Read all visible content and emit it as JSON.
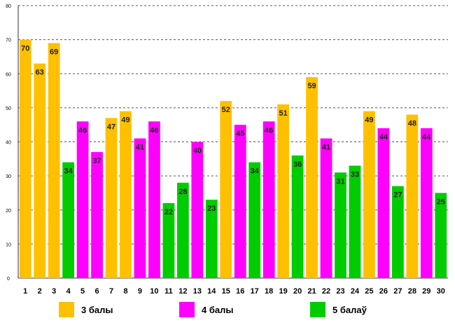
{
  "chart_data": {
    "type": "bar",
    "title": "",
    "xlabel": "",
    "ylabel": "",
    "ylim": [
      0,
      80
    ],
    "yticks": [
      "0",
      "10",
      "20",
      "30",
      "40",
      "50",
      "60",
      "70",
      "80"
    ],
    "grid": "horizontal-dashed",
    "legend_position": "bottom",
    "categories": [
      "1",
      "2",
      "3",
      "4",
      "5",
      "6",
      "7",
      "8",
      "9",
      "10",
      "11",
      "12",
      "13",
      "14",
      "15",
      "16",
      "17",
      "18",
      "19",
      "20",
      "21",
      "22",
      "23",
      "24",
      "25",
      "26",
      "27",
      "28",
      "29",
      "30"
    ],
    "values": [
      70,
      63,
      69,
      34,
      46,
      37,
      47,
      49,
      41,
      46,
      22,
      28,
      40,
      23,
      52,
      45,
      34,
      46,
      51,
      36,
      59,
      41,
      31,
      33,
      49,
      44,
      27,
      48,
      44,
      25
    ],
    "groups": [
      "3",
      "3",
      "3",
      "5",
      "4",
      "4",
      "3",
      "3",
      "4",
      "4",
      "5",
      "5",
      "4",
      "5",
      "3",
      "4",
      "5",
      "4",
      "3",
      "5",
      "3",
      "4",
      "5",
      "5",
      "3",
      "4",
      "5",
      "3",
      "4",
      "5"
    ],
    "series": [
      {
        "key": "3",
        "name": "3 балы",
        "color": "#ffc000"
      },
      {
        "key": "4",
        "name": "4 балы",
        "color": "#ff00ff"
      },
      {
        "key": "5",
        "name": "5 балаў",
        "color": "#00cc00"
      }
    ]
  }
}
